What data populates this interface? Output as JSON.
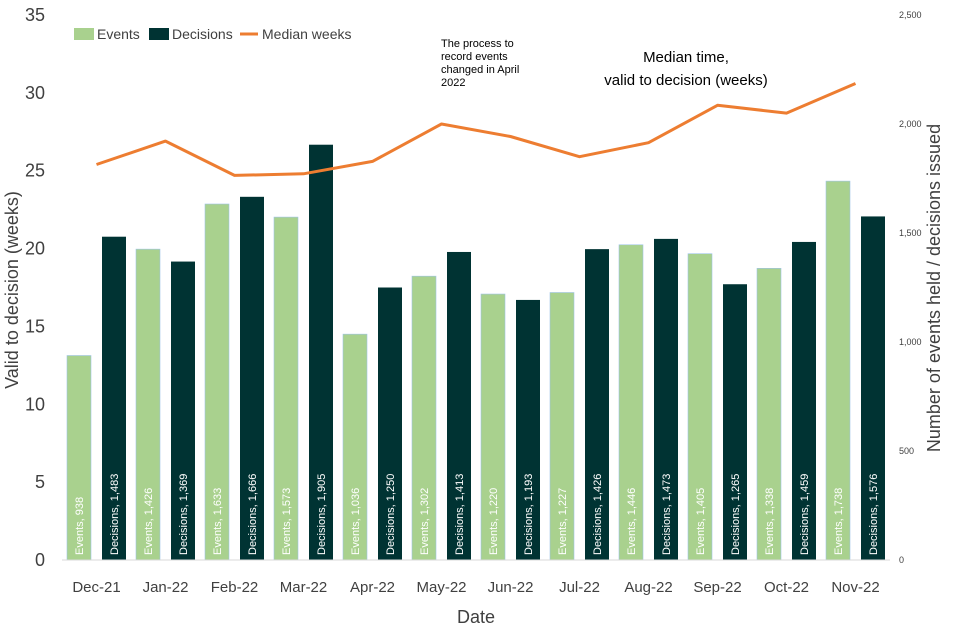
{
  "chart_data": {
    "type": "bar",
    "categories": [
      "Dec-21",
      "Jan-22",
      "Feb-22",
      "Mar-22",
      "Apr-22",
      "May-22",
      "Jun-22",
      "Jul-22",
      "Aug-22",
      "Sep-22",
      "Oct-22",
      "Nov-22"
    ],
    "series": [
      {
        "name": "Events",
        "type": "bar",
        "axis": "right",
        "color": "#a9d18e",
        "values": [
          938,
          1426,
          1633,
          1573,
          1036,
          1302,
          1220,
          1227,
          1446,
          1405,
          1338,
          1738
        ],
        "labels": [
          "Events, 938",
          "Events, 1,426",
          "Events, 1,633",
          "Events, 1,573",
          "Events, 1,036",
          "Events, 1,302",
          "Events, 1,220",
          "Events, 1,227",
          "Events, 1,446",
          "Events, 1,405",
          "Events, 1,338",
          "Events, 1,738"
        ]
      },
      {
        "name": "Decisions",
        "type": "bar",
        "axis": "right",
        "color": "#003333",
        "values": [
          1483,
          1369,
          1666,
          1905,
          1250,
          1413,
          1193,
          1426,
          1473,
          1265,
          1459,
          1576
        ],
        "labels": [
          "Decisions, 1,483",
          "Decisions, 1,369",
          "Decisions, 1,666",
          "Decisions, 1,905",
          "Decisions, 1,250",
          "Decisions, 1,413",
          "Decisions, 1,193",
          "Decisions, 1,426",
          "Decisions, 1,473",
          "Decisions, 1,265",
          "Decisions, 1,459",
          "Decisions, 1,576"
        ]
      },
      {
        "name": "Median weeks",
        "type": "line",
        "axis": "left",
        "color": "#ed7d31",
        "values": [
          25.4,
          26.9,
          24.7,
          24.8,
          25.6,
          28.0,
          27.2,
          25.9,
          26.8,
          29.2,
          28.7,
          30.6
        ]
      }
    ],
    "xlabel": "Date",
    "ylabel": "Valid to decision (weeks)",
    "y2label": "Number of events held / decisions issued",
    "ylim": [
      0,
      35
    ],
    "y2lim": [
      0,
      2500
    ],
    "yticks": [
      "0",
      "5",
      "10",
      "15",
      "20",
      "25",
      "30",
      "35"
    ],
    "y2ticks": [
      "0",
      "500",
      "1,000",
      "1,500",
      "2,000",
      "2,500"
    ],
    "legend_position": "top-left",
    "grid": false,
    "annotations": [
      {
        "text_lines": [
          "The process to",
          "record events",
          "changed in April",
          "2022"
        ]
      },
      {
        "text_lines": [
          "Median time,",
          "valid to decision (weeks)"
        ]
      }
    ]
  }
}
